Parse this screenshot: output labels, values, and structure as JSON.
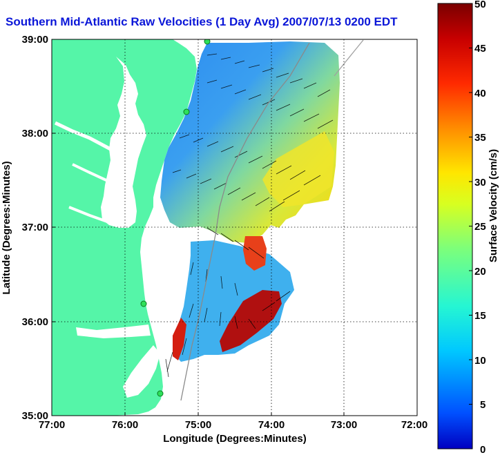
{
  "title": "Southern Mid-Atlantic Raw Velocities (1 Day Avg) 2007/07/13 0200 EDT",
  "map": {
    "xlabel": "Longitude (Degrees:Minutes)",
    "ylabel": "Latitude (Degrees:Minutes)",
    "x_ticks": [
      "77:00",
      "76:00",
      "75:00",
      "74:00",
      "73:00",
      "72:00"
    ],
    "y_ticks": [
      "39:00",
      "38:00",
      "37:00",
      "36:00",
      "35:00"
    ],
    "lon_range": [
      -77,
      -72
    ],
    "lat_range": [
      35,
      39
    ],
    "land_color": "#55f5a8",
    "grid": true
  },
  "colorbar": {
    "label": "Surface Velocity (cm/s)",
    "ticks": [
      "50",
      "45",
      "40",
      "35",
      "30",
      "25",
      "20",
      "15",
      "10",
      "5",
      "0"
    ],
    "range": [
      0,
      50
    ],
    "colormap": "jet"
  }
}
